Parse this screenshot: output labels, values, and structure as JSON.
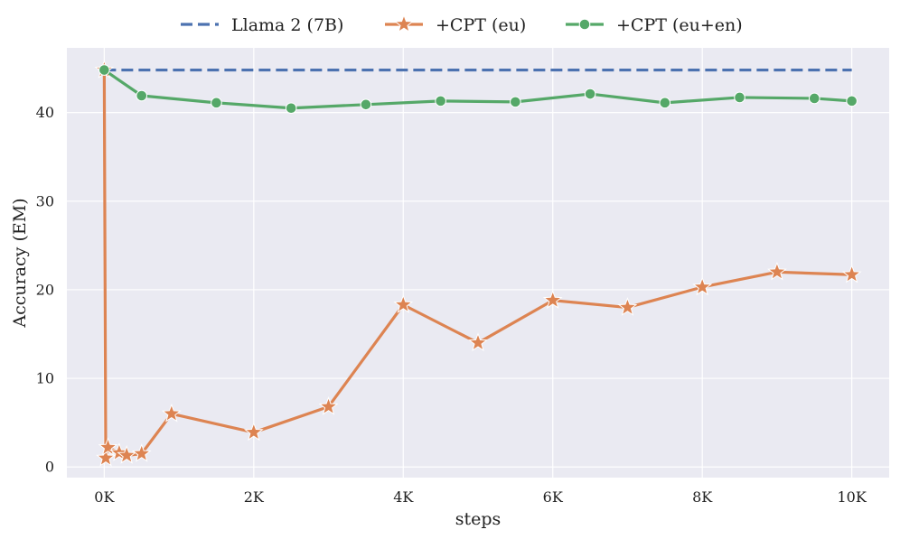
{
  "chart_data": {
    "type": "line",
    "title": "",
    "xlabel": "steps",
    "ylabel": "Accuracy (EM)",
    "xlim": [
      -500,
      10500
    ],
    "ylim": [
      -1.2,
      47.3
    ],
    "x_ticks": [
      0,
      2000,
      4000,
      6000,
      8000,
      10000
    ],
    "x_tick_labels": [
      "0K",
      "2K",
      "4K",
      "6K",
      "8K",
      "10K"
    ],
    "y_ticks": [
      0,
      10,
      20,
      30,
      40
    ],
    "y_tick_labels": [
      "0",
      "10",
      "20",
      "30",
      "40"
    ],
    "grid": true,
    "legend_position": "top-center",
    "series": [
      {
        "name": "Llama 2 (7B)",
        "color": "#4c72b0",
        "style": "dashed",
        "marker": "none",
        "x": [
          0,
          10000
        ],
        "y": [
          44.8,
          44.8
        ]
      },
      {
        "name": "+CPT (eu)",
        "color": "#dd8452",
        "style": "solid",
        "marker": "star",
        "x": [
          0,
          20,
          50,
          200,
          300,
          500,
          900,
          2000,
          3000,
          4000,
          5000,
          6000,
          7000,
          8000,
          9000,
          10000
        ],
        "y": [
          44.8,
          1.0,
          2.2,
          1.6,
          1.3,
          1.5,
          6.0,
          3.9,
          6.8,
          18.3,
          14.0,
          18.8,
          18.0,
          20.3,
          22.0,
          21.7
        ]
      },
      {
        "name": "+CPT (eu+en)",
        "color": "#55a868",
        "style": "solid",
        "marker": "circle",
        "x": [
          0,
          500,
          1500,
          2500,
          3500,
          4500,
          5500,
          6500,
          7500,
          8500,
          9500,
          10000
        ],
        "y": [
          44.8,
          41.9,
          41.1,
          40.5,
          40.9,
          41.3,
          41.2,
          42.1,
          41.1,
          41.7,
          41.6,
          41.3
        ]
      }
    ]
  }
}
